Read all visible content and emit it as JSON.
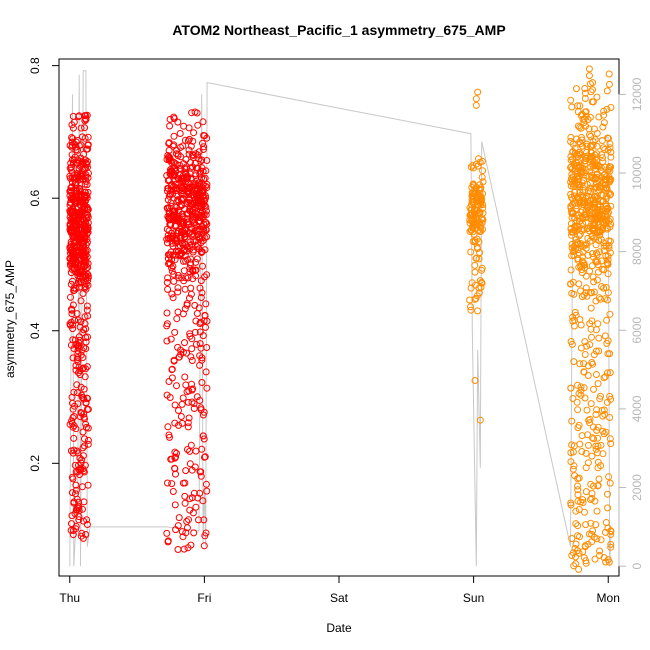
{
  "chart_data": {
    "type": "scatter",
    "title": "ATOM2 Northeast_Pacific_1 asymmetry_675_AMP",
    "xlabel": "Date",
    "ylabel": "asymmetry_675_AMP",
    "x_ticks": [
      "Thu",
      "Fri",
      "Sat",
      "Sun",
      "Mon"
    ],
    "xlim": [
      -0.08,
      4.08
    ],
    "ylim": [
      0.03,
      0.81
    ],
    "y_ticks": [
      0.2,
      0.4,
      0.6,
      0.8
    ],
    "y2lim": [
      -250,
      12900
    ],
    "y2_ticks": [
      0,
      2000,
      4000,
      6000,
      8000,
      10000,
      12000
    ],
    "grid": false,
    "legend": "none",
    "colors": {
      "early": "#ff0000",
      "late": "#ff8c00",
      "line": "#c8c8c8",
      "axis": "#000000",
      "right_axis": "#b8b8b8"
    },
    "series": [
      {
        "color": "#ff0000",
        "clusters": [
          {
            "x_range": [
              0.0,
              0.14
            ],
            "y_min": 0.085,
            "y_max": 0.725,
            "center": 0.56,
            "count": 600
          },
          {
            "x_range": [
              0.72,
              1.02
            ],
            "y_min": 0.07,
            "y_max": 0.73,
            "center": 0.58,
            "count": 650
          }
        ],
        "extra_points": [
          [
            0.12,
            0.72
          ],
          [
            0.13,
            0.725
          ],
          [
            0.93,
            0.73
          ],
          [
            0.95,
            0.71
          ]
        ]
      },
      {
        "color": "#ff8c00",
        "clusters": [
          {
            "x_range": [
              2.97,
              3.07
            ],
            "y_min": 0.42,
            "y_max": 0.66,
            "center": 0.58,
            "count": 140
          },
          {
            "x_range": [
              3.72,
              4.02
            ],
            "y_min": 0.04,
            "y_max": 0.79,
            "center": 0.6,
            "count": 700
          }
        ],
        "extra_points": [
          [
            3.03,
            0.76
          ],
          [
            3.02,
            0.75
          ],
          [
            3.02,
            0.74
          ],
          [
            3.01,
            0.325
          ],
          [
            3.05,
            0.265
          ],
          [
            3.86,
            0.795
          ],
          [
            3.86,
            0.785
          ],
          [
            3.83,
            0.73
          ],
          [
            3.78,
            0.04
          ]
        ]
      }
    ],
    "secondary_line": {
      "axis": "right",
      "points": [
        [
          0.0,
          0
        ],
        [
          0.02,
          12000
        ],
        [
          0.03,
          0
        ],
        [
          0.06,
          2000
        ],
        [
          0.07,
          12500
        ],
        [
          0.08,
          0
        ],
        [
          0.1,
          12600
        ],
        [
          0.12,
          12600
        ],
        [
          0.13,
          500
        ],
        [
          0.15,
          1000
        ],
        [
          0.72,
          1000
        ],
        [
          0.96,
          900
        ],
        [
          0.98,
          12000
        ],
        [
          0.99,
          600
        ],
        [
          1.0,
          2000
        ],
        [
          1.01,
          500
        ],
        [
          1.02,
          12300
        ],
        [
          2.98,
          11000
        ],
        [
          2.99,
          6000
        ],
        [
          3.02,
          0
        ],
        [
          3.03,
          5500
        ],
        [
          3.05,
          2500
        ],
        [
          3.06,
          10800
        ],
        [
          3.72,
          500
        ],
        [
          3.74,
          10800
        ],
        [
          4.0,
          10900
        ],
        [
          4.01,
          0
        ],
        [
          4.02,
          800
        ]
      ]
    }
  }
}
